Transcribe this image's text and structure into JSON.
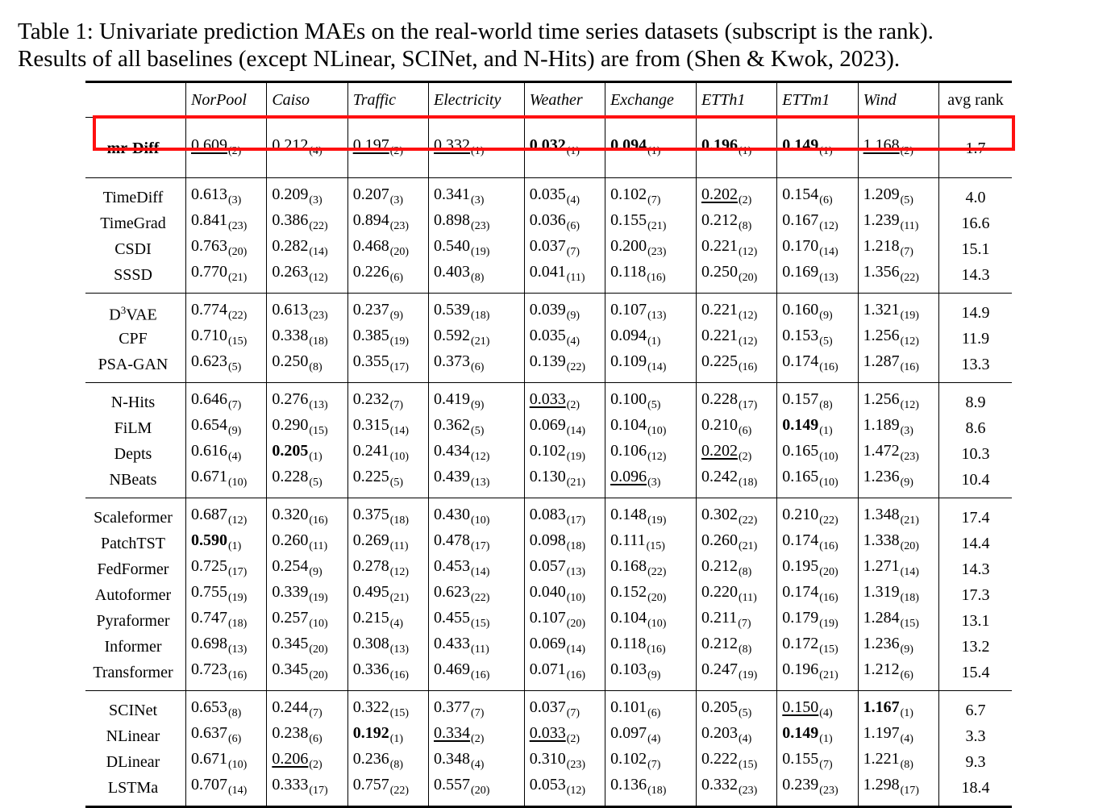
{
  "caption": {
    "line1": "Table 1: Univariate prediction MAEs on the real-world time series datasets (subscript is the rank).",
    "line2": "Results of all baselines (except NLinear, SCINet, and N-Hits) are from (Shen & Kwok, 2023)."
  },
  "headers": [
    "NorPool",
    "Caiso",
    "Traffic",
    "Electricity",
    "Weather",
    "Exchange",
    "ETTh1",
    "ETTm1",
    "Wind"
  ],
  "avg_header": "avg rank",
  "highlight_color": "#ff1010",
  "groups": [
    [
      {
        "name": "mr-Diff",
        "bold_name": true,
        "avg": "1.7",
        "cells": [
          [
            "0.609",
            "2",
            "u"
          ],
          [
            "0.212",
            "4",
            ""
          ],
          [
            "0.197",
            "2",
            "u"
          ],
          [
            "0.332",
            "1",
            "u"
          ],
          [
            "0.032",
            "1",
            "b"
          ],
          [
            "0.094",
            "1",
            "b"
          ],
          [
            "0.196",
            "1",
            "b"
          ],
          [
            "0.149",
            "1",
            "b"
          ],
          [
            "1.168",
            "2",
            "u"
          ]
        ]
      }
    ],
    [
      {
        "name": "TimeDiff",
        "avg": "4.0",
        "cells": [
          [
            "0.613",
            "3",
            ""
          ],
          [
            "0.209",
            "3",
            ""
          ],
          [
            "0.207",
            "3",
            ""
          ],
          [
            "0.341",
            "3",
            ""
          ],
          [
            "0.035",
            "4",
            ""
          ],
          [
            "0.102",
            "7",
            ""
          ],
          [
            "0.202",
            "2",
            "u"
          ],
          [
            "0.154",
            "6",
            ""
          ],
          [
            "1.209",
            "5",
            ""
          ]
        ]
      },
      {
        "name": "TimeGrad",
        "avg": "16.6",
        "cells": [
          [
            "0.841",
            "23",
            ""
          ],
          [
            "0.386",
            "22",
            ""
          ],
          [
            "0.894",
            "23",
            ""
          ],
          [
            "0.898",
            "23",
            ""
          ],
          [
            "0.036",
            "6",
            ""
          ],
          [
            "0.155",
            "21",
            ""
          ],
          [
            "0.212",
            "8",
            ""
          ],
          [
            "0.167",
            "12",
            ""
          ],
          [
            "1.239",
            "11",
            ""
          ]
        ]
      },
      {
        "name": "CSDI",
        "avg": "15.1",
        "cells": [
          [
            "0.763",
            "20",
            ""
          ],
          [
            "0.282",
            "14",
            ""
          ],
          [
            "0.468",
            "20",
            ""
          ],
          [
            "0.540",
            "19",
            ""
          ],
          [
            "0.037",
            "7",
            ""
          ],
          [
            "0.200",
            "23",
            ""
          ],
          [
            "0.221",
            "12",
            ""
          ],
          [
            "0.170",
            "14",
            ""
          ],
          [
            "1.218",
            "7",
            ""
          ]
        ]
      },
      {
        "name": "SSSD",
        "avg": "14.3",
        "cells": [
          [
            "0.770",
            "21",
            ""
          ],
          [
            "0.263",
            "12",
            ""
          ],
          [
            "0.226",
            "6",
            ""
          ],
          [
            "0.403",
            "8",
            ""
          ],
          [
            "0.041",
            "11",
            ""
          ],
          [
            "0.118",
            "16",
            ""
          ],
          [
            "0.250",
            "20",
            ""
          ],
          [
            "0.169",
            "13",
            ""
          ],
          [
            "1.356",
            "22",
            ""
          ]
        ]
      }
    ],
    [
      {
        "name": "D",
        "name_sup": "3",
        "name_rest": "VAE",
        "avg": "14.9",
        "cells": [
          [
            "0.774",
            "22",
            ""
          ],
          [
            "0.613",
            "23",
            ""
          ],
          [
            "0.237",
            "9",
            ""
          ],
          [
            "0.539",
            "18",
            ""
          ],
          [
            "0.039",
            "9",
            ""
          ],
          [
            "0.107",
            "13",
            ""
          ],
          [
            "0.221",
            "12",
            ""
          ],
          [
            "0.160",
            "9",
            ""
          ],
          [
            "1.321",
            "19",
            ""
          ]
        ]
      },
      {
        "name": "CPF",
        "avg": "11.9",
        "cells": [
          [
            "0.710",
            "15",
            ""
          ],
          [
            "0.338",
            "18",
            ""
          ],
          [
            "0.385",
            "19",
            ""
          ],
          [
            "0.592",
            "21",
            ""
          ],
          [
            "0.035",
            "4",
            ""
          ],
          [
            "0.094",
            "1",
            ""
          ],
          [
            "0.221",
            "12",
            ""
          ],
          [
            "0.153",
            "5",
            ""
          ],
          [
            "1.256",
            "12",
            ""
          ]
        ]
      },
      {
        "name": "PSA-GAN",
        "avg": "13.3",
        "cells": [
          [
            "0.623",
            "5",
            ""
          ],
          [
            "0.250",
            "8",
            ""
          ],
          [
            "0.355",
            "17",
            ""
          ],
          [
            "0.373",
            "6",
            ""
          ],
          [
            "0.139",
            "22",
            ""
          ],
          [
            "0.109",
            "14",
            ""
          ],
          [
            "0.225",
            "16",
            ""
          ],
          [
            "0.174",
            "16",
            ""
          ],
          [
            "1.287",
            "16",
            ""
          ]
        ]
      }
    ],
    [
      {
        "name": "N-Hits",
        "avg": "8.9",
        "cells": [
          [
            "0.646",
            "7",
            ""
          ],
          [
            "0.276",
            "13",
            ""
          ],
          [
            "0.232",
            "7",
            ""
          ],
          [
            "0.419",
            "9",
            ""
          ],
          [
            "0.033",
            "2",
            "u"
          ],
          [
            "0.100",
            "5",
            ""
          ],
          [
            "0.228",
            "17",
            ""
          ],
          [
            "0.157",
            "8",
            ""
          ],
          [
            "1.256",
            "12",
            ""
          ]
        ]
      },
      {
        "name": "FiLM",
        "avg": "8.6",
        "cells": [
          [
            "0.654",
            "9",
            ""
          ],
          [
            "0.290",
            "15",
            ""
          ],
          [
            "0.315",
            "14",
            ""
          ],
          [
            "0.362",
            "5",
            ""
          ],
          [
            "0.069",
            "14",
            ""
          ],
          [
            "0.104",
            "10",
            ""
          ],
          [
            "0.210",
            "6",
            ""
          ],
          [
            "0.149",
            "1",
            "b"
          ],
          [
            "1.189",
            "3",
            ""
          ]
        ]
      },
      {
        "name": "Depts",
        "avg": "10.3",
        "cells": [
          [
            "0.616",
            "4",
            ""
          ],
          [
            "0.205",
            "1",
            "b"
          ],
          [
            "0.241",
            "10",
            ""
          ],
          [
            "0.434",
            "12",
            ""
          ],
          [
            "0.102",
            "19",
            ""
          ],
          [
            "0.106",
            "12",
            ""
          ],
          [
            "0.202",
            "2",
            "u"
          ],
          [
            "0.165",
            "10",
            ""
          ],
          [
            "1.472",
            "23",
            ""
          ]
        ]
      },
      {
        "name": "NBeats",
        "avg": "10.4",
        "cells": [
          [
            "0.671",
            "10",
            ""
          ],
          [
            "0.228",
            "5",
            ""
          ],
          [
            "0.225",
            "5",
            ""
          ],
          [
            "0.439",
            "13",
            ""
          ],
          [
            "0.130",
            "21",
            ""
          ],
          [
            "0.096",
            "3",
            "u"
          ],
          [
            "0.242",
            "18",
            ""
          ],
          [
            "0.165",
            "10",
            ""
          ],
          [
            "1.236",
            "9",
            ""
          ]
        ]
      }
    ],
    [
      {
        "name": "Scaleformer",
        "avg": "17.4",
        "cells": [
          [
            "0.687",
            "12",
            ""
          ],
          [
            "0.320",
            "16",
            ""
          ],
          [
            "0.375",
            "18",
            ""
          ],
          [
            "0.430",
            "10",
            ""
          ],
          [
            "0.083",
            "17",
            ""
          ],
          [
            "0.148",
            "19",
            ""
          ],
          [
            "0.302",
            "22",
            ""
          ],
          [
            "0.210",
            "22",
            ""
          ],
          [
            "1.348",
            "21",
            ""
          ]
        ]
      },
      {
        "name": "PatchTST",
        "avg": "14.4",
        "cells": [
          [
            "0.590",
            "1",
            "b"
          ],
          [
            "0.260",
            "11",
            ""
          ],
          [
            "0.269",
            "11",
            ""
          ],
          [
            "0.478",
            "17",
            ""
          ],
          [
            "0.098",
            "18",
            ""
          ],
          [
            "0.111",
            "15",
            ""
          ],
          [
            "0.260",
            "21",
            ""
          ],
          [
            "0.174",
            "16",
            ""
          ],
          [
            "1.338",
            "20",
            ""
          ]
        ]
      },
      {
        "name": "FedFormer",
        "avg": "14.3",
        "cells": [
          [
            "0.725",
            "17",
            ""
          ],
          [
            "0.254",
            "9",
            ""
          ],
          [
            "0.278",
            "12",
            ""
          ],
          [
            "0.453",
            "14",
            ""
          ],
          [
            "0.057",
            "13",
            ""
          ],
          [
            "0.168",
            "22",
            ""
          ],
          [
            "0.212",
            "8",
            ""
          ],
          [
            "0.195",
            "20",
            ""
          ],
          [
            "1.271",
            "14",
            ""
          ]
        ]
      },
      {
        "name": "Autoformer",
        "avg": "17.3",
        "cells": [
          [
            "0.755",
            "19",
            ""
          ],
          [
            "0.339",
            "19",
            ""
          ],
          [
            "0.495",
            "21",
            ""
          ],
          [
            "0.623",
            "22",
            ""
          ],
          [
            "0.040",
            "10",
            ""
          ],
          [
            "0.152",
            "20",
            ""
          ],
          [
            "0.220",
            "11",
            ""
          ],
          [
            "0.174",
            "16",
            ""
          ],
          [
            "1.319",
            "18",
            ""
          ]
        ]
      },
      {
        "name": "Pyraformer",
        "avg": "13.1",
        "cells": [
          [
            "0.747",
            "18",
            ""
          ],
          [
            "0.257",
            "10",
            ""
          ],
          [
            "0.215",
            "4",
            ""
          ],
          [
            "0.455",
            "15",
            ""
          ],
          [
            "0.107",
            "20",
            ""
          ],
          [
            "0.104",
            "10",
            ""
          ],
          [
            "0.211",
            "7",
            ""
          ],
          [
            "0.179",
            "19",
            ""
          ],
          [
            "1.284",
            "15",
            ""
          ]
        ]
      },
      {
        "name": "Informer",
        "avg": "13.2",
        "cells": [
          [
            "0.698",
            "13",
            ""
          ],
          [
            "0.345",
            "20",
            ""
          ],
          [
            "0.308",
            "13",
            ""
          ],
          [
            "0.433",
            "11",
            ""
          ],
          [
            "0.069",
            "14",
            ""
          ],
          [
            "0.118",
            "16",
            ""
          ],
          [
            "0.212",
            "8",
            ""
          ],
          [
            "0.172",
            "15",
            ""
          ],
          [
            "1.236",
            "9",
            ""
          ]
        ]
      },
      {
        "name": "Transformer",
        "avg": "15.4",
        "cells": [
          [
            "0.723",
            "16",
            ""
          ],
          [
            "0.345",
            "20",
            ""
          ],
          [
            "0.336",
            "16",
            ""
          ],
          [
            "0.469",
            "16",
            ""
          ],
          [
            "0.071",
            "16",
            ""
          ],
          [
            "0.103",
            "9",
            ""
          ],
          [
            "0.247",
            "19",
            ""
          ],
          [
            "0.196",
            "21",
            ""
          ],
          [
            "1.212",
            "6",
            ""
          ]
        ]
      }
    ],
    [
      {
        "name": "SCINet",
        "avg": "6.7",
        "cells": [
          [
            "0.653",
            "8",
            ""
          ],
          [
            "0.244",
            "7",
            ""
          ],
          [
            "0.322",
            "15",
            ""
          ],
          [
            "0.377",
            "7",
            ""
          ],
          [
            "0.037",
            "7",
            ""
          ],
          [
            "0.101",
            "6",
            ""
          ],
          [
            "0.205",
            "5",
            ""
          ],
          [
            "0.150",
            "4",
            "u"
          ],
          [
            "1.167",
            "1",
            "b"
          ]
        ]
      },
      {
        "name": "NLinear",
        "avg": "3.3",
        "cells": [
          [
            "0.637",
            "6",
            ""
          ],
          [
            "0.238",
            "6",
            ""
          ],
          [
            "0.192",
            "1",
            "b"
          ],
          [
            "0.334",
            "2",
            "u"
          ],
          [
            "0.033",
            "2",
            "u"
          ],
          [
            "0.097",
            "4",
            ""
          ],
          [
            "0.203",
            "4",
            ""
          ],
          [
            "0.149",
            "1",
            "b"
          ],
          [
            "1.197",
            "4",
            ""
          ]
        ]
      },
      {
        "name": "DLinear",
        "avg": "9.3",
        "cells": [
          [
            "0.671",
            "10",
            ""
          ],
          [
            "0.206",
            "2",
            "u"
          ],
          [
            "0.236",
            "8",
            ""
          ],
          [
            "0.348",
            "4",
            ""
          ],
          [
            "0.310",
            "23",
            ""
          ],
          [
            "0.102",
            "7",
            ""
          ],
          [
            "0.222",
            "15",
            ""
          ],
          [
            "0.155",
            "7",
            ""
          ],
          [
            "1.221",
            "8",
            ""
          ]
        ]
      },
      {
        "name": "LSTMa",
        "avg": "18.4",
        "cells": [
          [
            "0.707",
            "14",
            ""
          ],
          [
            "0.333",
            "17",
            ""
          ],
          [
            "0.757",
            "22",
            ""
          ],
          [
            "0.557",
            "20",
            ""
          ],
          [
            "0.053",
            "12",
            ""
          ],
          [
            "0.136",
            "18",
            ""
          ],
          [
            "0.332",
            "23",
            ""
          ],
          [
            "0.239",
            "23",
            ""
          ],
          [
            "1.298",
            "17",
            ""
          ]
        ]
      }
    ]
  ]
}
